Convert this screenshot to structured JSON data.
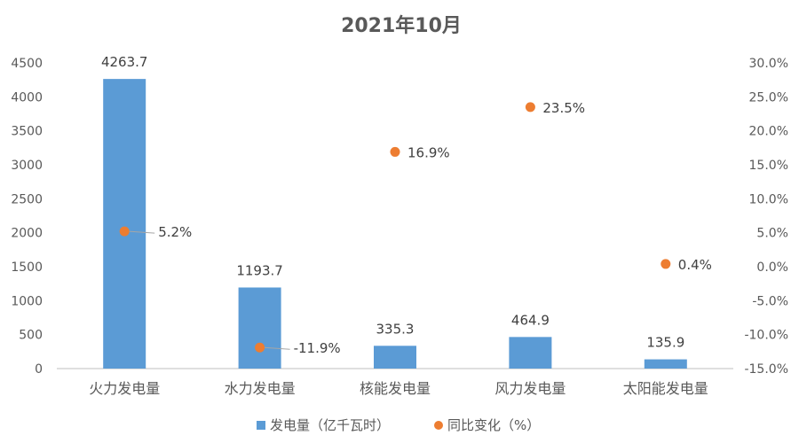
{
  "chart_data": {
    "type": "bar",
    "title": "2021年10月",
    "categories": [
      "火力发电量",
      "水力发电量",
      "核能发电量",
      "风力发电量",
      "太阳能发电量"
    ],
    "series": [
      {
        "name": "发电量（亿千瓦时）",
        "type": "bar",
        "axis": "left",
        "color": "#5B9BD5",
        "values": [
          4263.7,
          1193.7,
          335.3,
          464.9,
          135.9
        ],
        "labels": [
          "4263.7",
          "1193.7",
          "335.3",
          "464.9",
          "135.9"
        ]
      },
      {
        "name": "同比变化（%）",
        "type": "scatter",
        "axis": "right",
        "color": "#ED7D31",
        "values": [
          5.2,
          -11.9,
          16.9,
          23.5,
          0.4
        ],
        "labels": [
          "5.2%",
          "-11.9%",
          "16.9%",
          "23.5%",
          "0.4%"
        ]
      }
    ],
    "y_left": {
      "min": 0,
      "max": 4500,
      "step": 500,
      "ticks": [
        "0",
        "500",
        "1000",
        "1500",
        "2000",
        "2500",
        "3000",
        "3500",
        "4000",
        "4500"
      ]
    },
    "y_right": {
      "min": -15,
      "max": 30,
      "step": 5,
      "ticks": [
        "-15.0%",
        "-10.0%",
        "-5.0%",
        "0.0%",
        "5.0%",
        "10.0%",
        "15.0%",
        "20.0%",
        "25.0%",
        "30.0%"
      ]
    },
    "grid": false,
    "legend_position": "bottom"
  }
}
